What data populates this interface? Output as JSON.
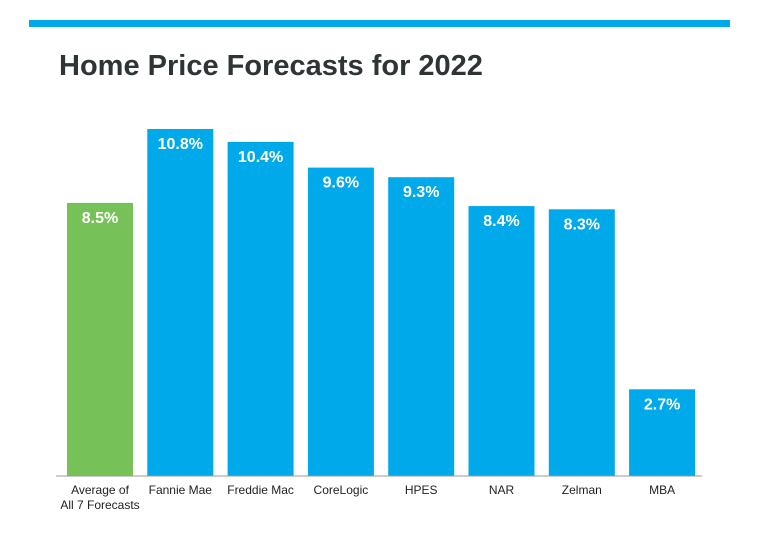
{
  "title": "Home Price Forecasts for 2022",
  "colors": {
    "accent": "#00a9ea",
    "average": "#76c258",
    "title": "#2f3436"
  },
  "chart_data": {
    "type": "bar",
    "title": "Home Price Forecasts for 2022",
    "categories": [
      [
        "Average of",
        "All 7 Forecasts"
      ],
      [
        "Fannie Mae"
      ],
      [
        "Freddie Mac"
      ],
      [
        "CoreLogic"
      ],
      [
        "HPES"
      ],
      [
        "NAR"
      ],
      [
        "Zelman"
      ],
      [
        "MBA"
      ]
    ],
    "values": [
      8.5,
      10.8,
      10.4,
      9.6,
      9.3,
      8.4,
      8.3,
      2.7
    ],
    "value_labels": [
      "8.5%",
      "10.8%",
      "10.4%",
      "9.6%",
      "9.3%",
      "8.4%",
      "8.3%",
      "2.7%"
    ],
    "highlight_index": 0,
    "xlabel": "",
    "ylabel": "",
    "ylim": [
      0,
      10.8
    ],
    "grid": false,
    "legend": "none"
  }
}
